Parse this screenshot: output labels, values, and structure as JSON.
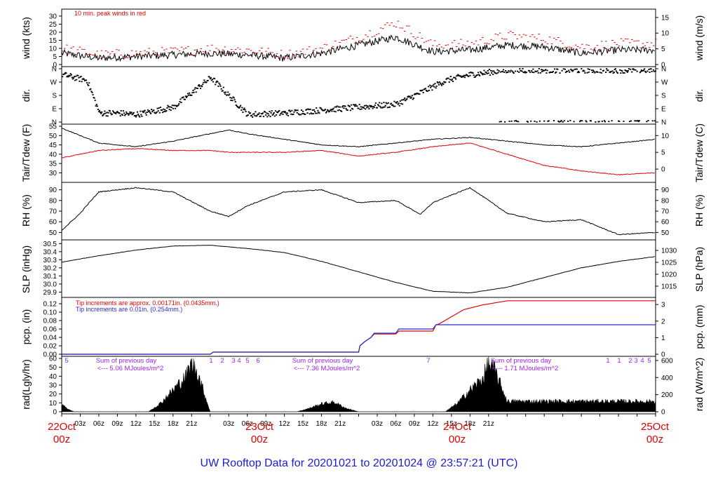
{
  "title": "UW Rooftop Data for 20201021  to  20201024 @ 23:57:21  (UTC)",
  "x_ticks": [
    "03z",
    "06z",
    "09z",
    "12z",
    "15z",
    "18z",
    "21z",
    "03z",
    "06z",
    "09z",
    "12z",
    "15z",
    "18z",
    "21z",
    "03z",
    "06z",
    "09z",
    "12z",
    "15z",
    "18z",
    "21z"
  ],
  "day_labels": [
    {
      "date": "22Oct",
      "time": "00z"
    },
    {
      "date": "23Oct",
      "time": "00z"
    },
    {
      "date": "24Oct",
      "time": "00z"
    },
    {
      "date": "25Oct",
      "time": "00z"
    }
  ],
  "panels": {
    "wind": {
      "left_label": "wind (kts)",
      "right_label": "wind (m/s)",
      "left_ticks": [
        "0",
        "5",
        "10",
        "15",
        "20",
        "25",
        "30"
      ],
      "right_ticks": [
        "0",
        "5",
        "10",
        "15"
      ],
      "note": "10 min. peak winds in red"
    },
    "dir": {
      "left_label": "dir.",
      "right_label": "dir.",
      "ticks": [
        "N",
        "E",
        "S",
        "W",
        "N"
      ]
    },
    "temp": {
      "left_label": "Tair/Tdew (F)",
      "right_label": "Tair/Tdew (C)",
      "left_ticks": [
        "30",
        "35",
        "40",
        "45",
        "50",
        "55"
      ],
      "right_ticks": [
        "0",
        "5",
        "10"
      ]
    },
    "rh": {
      "left_label": "RH (%)",
      "right_label": "RH (%)",
      "ticks": [
        "50",
        "60",
        "70",
        "80",
        "90"
      ]
    },
    "slp": {
      "left_label": "SLP (inHg)",
      "right_label": "SLP (hPa)",
      "left_ticks": [
        "29.9",
        "30.0",
        "30.1",
        "30.2",
        "30.3",
        "30.4",
        "30.5"
      ],
      "right_ticks": [
        "1015",
        "1020",
        "1025",
        "1030"
      ]
    },
    "pcp": {
      "left_label": "pcp. (in)",
      "right_label": "pcp. (mm)",
      "left_ticks": [
        "0.00",
        "0.02",
        "0.04",
        "0.06",
        "0.08",
        "0.10",
        "0.12"
      ],
      "right_ticks": [
        "0",
        "1",
        "2",
        "3"
      ],
      "note_red": "Tip increments are approx. 0.00171in. (0.0435mm.)",
      "note_blue": "Tip increments are 0.01in. (0.254mm.)"
    },
    "rad": {
      "left_label": "rad(Lgly/hr)",
      "right_label": "rad (W/m^2)",
      "left_ticks": [
        "0",
        "10",
        "20",
        "30",
        "40",
        "50",
        "60"
      ],
      "right_ticks": [
        "0",
        "200",
        "400",
        "600"
      ],
      "sums": [
        {
          "line1": "Sum of previous day",
          "line2": "<--- 5.06 MJoules/m^2"
        },
        {
          "line1": "Sum of previous day",
          "line2": "<--- 7.36 MJoules/m^2"
        },
        {
          "line1": "Sum of previous day",
          "line2": "<--- 1.71 MJoules/m^2"
        }
      ],
      "digits": [
        "5",
        "1",
        "2",
        "3",
        "4",
        "5",
        "6",
        "7",
        "1",
        "1",
        "2",
        "3",
        "4",
        "5"
      ]
    }
  },
  "chart_data": [
    {
      "type": "line",
      "title": "",
      "ylabel": "wind (kts)",
      "ylim": [
        0,
        33
      ],
      "x_hours": [
        0,
        6,
        12,
        18,
        24,
        30,
        36,
        42,
        48,
        54,
        60,
        66,
        72,
        78,
        84,
        90,
        96
      ],
      "series": [
        {
          "values": [
            7,
            4,
            5,
            6,
            7,
            6,
            4,
            7,
            12,
            17,
            8,
            9,
            12,
            11,
            7,
            9,
            9
          ]
        },
        {
          "values": [
            10,
            6,
            7,
            8,
            10,
            9,
            6,
            10,
            17,
            26,
            12,
            13,
            18,
            16,
            11,
            13,
            13
          ],
          "color": "#e00000"
        }
      ]
    },
    {
      "type": "scatter",
      "title": "",
      "ylabel": "dir.",
      "ylim": [
        0,
        360
      ],
      "x_hours": [
        0,
        4,
        6,
        9,
        12,
        18,
        24,
        30,
        36,
        42,
        48,
        54,
        58,
        62,
        66,
        72,
        78,
        84,
        90,
        96
      ],
      "series": [
        {
          "values": [
            320,
            280,
            60,
            60,
            50,
            100,
            300,
            50,
            60,
            80,
            100,
            120,
            200,
            280,
            320,
            350,
            350,
            350,
            350,
            350
          ]
        }
      ]
    },
    {
      "type": "line",
      "title": "",
      "ylabel": "Tair/Tdew (F)",
      "ylim": [
        26,
        55
      ],
      "x_hours": [
        0,
        6,
        12,
        18,
        24,
        27,
        30,
        36,
        42,
        48,
        54,
        60,
        66,
        72,
        78,
        84,
        90,
        96
      ],
      "series": [
        {
          "values": [
            54,
            46,
            44,
            47,
            51,
            53,
            51,
            48,
            45,
            44,
            46,
            48,
            49,
            47,
            45,
            44,
            46,
            48
          ]
        },
        {
          "values": [
            38,
            42,
            43,
            42,
            42,
            41,
            41,
            41,
            42,
            39,
            41,
            44,
            46,
            40,
            34,
            31,
            29,
            30
          ],
          "color": "#e00000"
        }
      ]
    },
    {
      "type": "line",
      "title": "",
      "ylabel": "RH (%)",
      "ylim": [
        45,
        95
      ],
      "x_hours": [
        0,
        3,
        4,
        6,
        12,
        18,
        24,
        27,
        30,
        36,
        42,
        48,
        54,
        58,
        60,
        66,
        72,
        78,
        84,
        90,
        96
      ],
      "series": [
        {
          "values": [
            52,
            68,
            75,
            88,
            92,
            88,
            70,
            65,
            75,
            88,
            90,
            78,
            80,
            67,
            78,
            92,
            68,
            60,
            62,
            48,
            50
          ]
        }
      ]
    },
    {
      "type": "line",
      "title": "",
      "ylabel": "SLP (inHg)",
      "ylim": [
        29.86,
        30.52
      ],
      "x_hours": [
        0,
        6,
        12,
        18,
        24,
        30,
        36,
        42,
        48,
        54,
        60,
        66,
        72,
        78,
        84,
        90,
        96
      ],
      "series": [
        {
          "values": [
            30.27,
            30.35,
            30.42,
            30.47,
            30.48,
            30.44,
            30.39,
            30.28,
            30.15,
            30.02,
            29.91,
            29.89,
            29.96,
            30.08,
            30.2,
            30.28,
            30.34
          ]
        }
      ]
    },
    {
      "type": "line",
      "title": "",
      "ylabel": "pcp. (in)",
      "ylim": [
        0,
        0.13
      ],
      "x_hours": [
        0,
        24,
        24.5,
        48,
        48.2,
        49,
        50,
        50.5,
        54,
        54.5,
        60,
        60.5,
        61,
        65,
        68,
        72,
        96
      ],
      "series": [
        {
          "values": [
            0,
            0,
            0.005,
            0.005,
            0.02,
            0.03,
            0.04,
            0.048,
            0.048,
            0.055,
            0.055,
            0.07,
            0.072,
            0.106,
            0.117,
            0.127,
            0.127
          ],
          "color": "#e00000"
        },
        {
          "values": [
            0,
            0,
            0.005,
            0.005,
            0.02,
            0.03,
            0.04,
            0.05,
            0.05,
            0.06,
            0.06,
            0.07,
            0.07,
            0.07,
            0.07,
            0.07,
            0.07
          ],
          "color": "#2a2acc"
        }
      ]
    },
    {
      "type": "area",
      "title": "",
      "ylabel": "rad(Lgly/hr)",
      "ylim": [
        0,
        60
      ],
      "x_hours": [
        0,
        1,
        2,
        14,
        16,
        18,
        20,
        21,
        22,
        23,
        24,
        38,
        40,
        42,
        44,
        46,
        48,
        62,
        64,
        66,
        68,
        69,
        70,
        71,
        72
      ],
      "series": [
        {
          "values": [
            10,
            3,
            0,
            0,
            10,
            25,
            40,
            55,
            45,
            22,
            0,
            0,
            4,
            9,
            11,
            4,
            0,
            0,
            10,
            25,
            38,
            55,
            48,
            30,
            12
          ]
        }
      ]
    }
  ]
}
